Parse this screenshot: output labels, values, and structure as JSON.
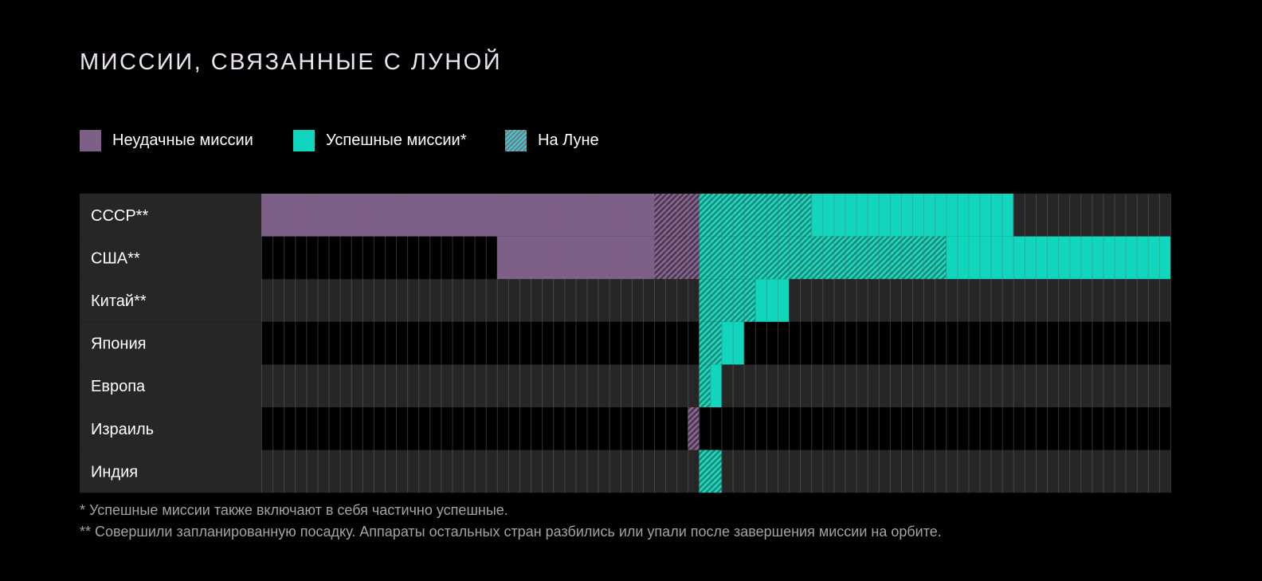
{
  "title": "МИССИИ, СВЯЗАННЫЕ С ЛУНОЙ",
  "colors": {
    "failed": "#7d5f87",
    "success": "#0fd6bd",
    "on_moon_a": "#0b8f7e",
    "on_moon_b": "#2ad8c0",
    "on_moon_failed_a": "#4a3650",
    "on_moon_failed_b": "#8a6a92",
    "row_even": "#262626",
    "row_odd": "#000000",
    "label_bg": "#262626",
    "grid_line": "#6e6e6e"
  },
  "legend": {
    "failed": "Неудачные миссии",
    "success": "Успешные миссии*",
    "on_moon": "На Луне"
  },
  "chart_data": {
    "type": "bar",
    "orientation": "horizontal",
    "categories": [
      "СССР**",
      "США**",
      "Китай**",
      "Япония",
      "Европа",
      "Израиль",
      "Индия"
    ],
    "axis_origin": 39,
    "x_range": [
      0,
      81
    ],
    "series": [
      {
        "name": "Неудачные миссии",
        "segments": [
          [
            0,
            35
          ],
          [
            21,
            35
          ],
          [],
          [],
          [],
          [],
          []
        ]
      },
      {
        "name": "Неудачные миссии — На Луне",
        "segments": [
          [
            35,
            39
          ],
          [
            35,
            39
          ],
          [],
          [],
          [],
          [
            38,
            39
          ],
          []
        ]
      },
      {
        "name": "Успешные миссии* — На Луне",
        "segments": [
          [
            39,
            49
          ],
          [
            39,
            61
          ],
          [
            39,
            44
          ],
          [
            39,
            41
          ],
          [
            39,
            40
          ],
          [],
          [
            39,
            41
          ]
        ]
      },
      {
        "name": "Успешные миссии*",
        "segments": [
          [
            49,
            67
          ],
          [
            61,
            81
          ],
          [
            44,
            47
          ],
          [
            41,
            43
          ],
          [
            40,
            41
          ],
          [],
          []
        ]
      }
    ]
  },
  "footnotes": [
    "* Успешные миссии также включают в себя частично успешные.",
    "** Совершили запланированную посадку. Аппараты остальных стран разбились или упали после завершения миссии на орбите."
  ]
}
